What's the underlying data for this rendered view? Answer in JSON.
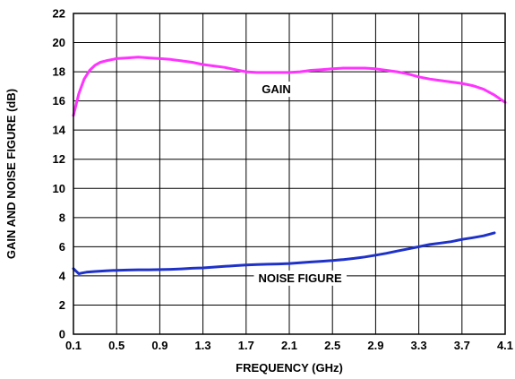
{
  "chart_data": {
    "type": "line",
    "xlabel": "FREQUENCY (GHz)",
    "ylabel": "GAIN AND NOISE FIGURE (dB)",
    "xlim": [
      0.1,
      4.1
    ],
    "ylim": [
      0,
      22
    ],
    "xticks": [
      0.1,
      0.5,
      0.9,
      1.3,
      1.7,
      2.1,
      2.5,
      2.9,
      3.3,
      3.7,
      4.1
    ],
    "yticks": [
      0,
      2,
      4,
      6,
      8,
      10,
      12,
      14,
      16,
      18,
      20,
      22
    ],
    "xtick_labels": [
      "0.1",
      "0.5",
      "0.9",
      "1.3",
      "1.7",
      "2.1",
      "2.5",
      "2.9",
      "3.3",
      "3.7",
      "4.1"
    ],
    "ytick_labels": [
      "0",
      "2",
      "4",
      "6",
      "8",
      "10",
      "12",
      "14",
      "16",
      "18",
      "20",
      "22"
    ],
    "grid": true,
    "series": [
      {
        "name": "GAIN",
        "color": "#ff33ff",
        "x": [
          0.1,
          0.12,
          0.15,
          0.2,
          0.25,
          0.3,
          0.35,
          0.4,
          0.5,
          0.6,
          0.7,
          0.8,
          0.9,
          1.0,
          1.1,
          1.2,
          1.3,
          1.4,
          1.5,
          1.6,
          1.7,
          1.8,
          1.9,
          2.0,
          2.1,
          2.2,
          2.3,
          2.4,
          2.5,
          2.6,
          2.7,
          2.8,
          2.9,
          3.0,
          3.1,
          3.2,
          3.3,
          3.4,
          3.5,
          3.6,
          3.7,
          3.8,
          3.9,
          4.0,
          4.1
        ],
        "values": [
          15.0,
          15.6,
          16.5,
          17.5,
          18.1,
          18.45,
          18.65,
          18.75,
          18.9,
          18.95,
          19.0,
          18.95,
          18.9,
          18.85,
          18.75,
          18.65,
          18.5,
          18.4,
          18.3,
          18.15,
          18.0,
          17.95,
          17.95,
          17.95,
          17.95,
          18.0,
          18.1,
          18.15,
          18.2,
          18.25,
          18.25,
          18.25,
          18.2,
          18.1,
          18.0,
          17.85,
          17.65,
          17.5,
          17.4,
          17.3,
          17.2,
          17.05,
          16.8,
          16.4,
          15.9
        ],
        "label": "GAIN",
        "label_at": [
          1.98,
          16.8
        ]
      },
      {
        "name": "NOISE FIGURE",
        "color": "#1f32c8",
        "x": [
          0.1,
          0.12,
          0.15,
          0.18,
          0.22,
          0.3,
          0.4,
          0.5,
          0.6,
          0.7,
          0.8,
          0.9,
          1.0,
          1.1,
          1.2,
          1.3,
          1.4,
          1.5,
          1.6,
          1.7,
          1.8,
          1.9,
          2.0,
          2.1,
          2.2,
          2.3,
          2.4,
          2.5,
          2.6,
          2.7,
          2.8,
          2.9,
          3.0,
          3.1,
          3.2,
          3.3,
          3.4,
          3.5,
          3.6,
          3.7,
          3.8,
          3.9,
          4.0
        ],
        "values": [
          4.5,
          4.35,
          4.15,
          4.2,
          4.25,
          4.3,
          4.35,
          4.38,
          4.4,
          4.42,
          4.42,
          4.43,
          4.45,
          4.48,
          4.52,
          4.55,
          4.6,
          4.65,
          4.7,
          4.75,
          4.78,
          4.8,
          4.82,
          4.85,
          4.9,
          4.95,
          5.0,
          5.05,
          5.12,
          5.2,
          5.3,
          5.42,
          5.55,
          5.7,
          5.85,
          6.0,
          6.15,
          6.25,
          6.35,
          6.5,
          6.62,
          6.75,
          6.95
        ],
        "label": "NOISE FIGURE",
        "label_at": [
          2.2,
          3.85
        ]
      }
    ]
  }
}
